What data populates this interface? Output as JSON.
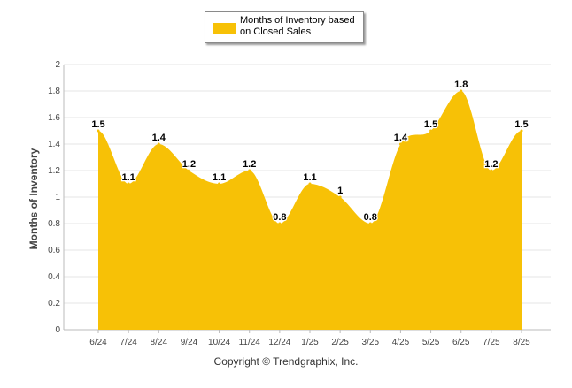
{
  "chart_data": {
    "type": "area",
    "categories": [
      "6/24",
      "7/24",
      "8/24",
      "9/24",
      "10/24",
      "11/24",
      "12/24",
      "1/25",
      "2/25",
      "3/25",
      "4/25",
      "5/25",
      "6/25",
      "7/25",
      "8/25"
    ],
    "series": [
      {
        "name": "Months of Inventory based on Closed Sales",
        "values": [
          1.5,
          1.1,
          1.4,
          1.2,
          1.1,
          1.2,
          0.8,
          1.1,
          1.0,
          0.8,
          1.4,
          1.5,
          1.8,
          1.2,
          1.5
        ],
        "data_labels": [
          "1.5",
          "1.1",
          "1.4",
          "1.2",
          "1.1",
          "1.2",
          "0.8",
          "1.1",
          "1",
          "0.8",
          "1.4",
          "1.5",
          "1.8",
          "1.2",
          "1.5"
        ],
        "color": "#f7c106"
      }
    ],
    "ylabel": "Months of Inventory",
    "xlabel": "",
    "ylim": [
      0,
      2
    ],
    "yticks": [
      "0",
      "0.2",
      "0.4",
      "0.6",
      "0.8",
      "1",
      "1.2",
      "1.4",
      "1.6",
      "1.8",
      "2"
    ],
    "grid": true,
    "legend_position": "top-center"
  },
  "legend": {
    "label_line1": "Months of Inventory based",
    "label_line2": "on Closed Sales"
  },
  "footer": {
    "copyright": "Copyright © Trendgraphix, Inc."
  }
}
